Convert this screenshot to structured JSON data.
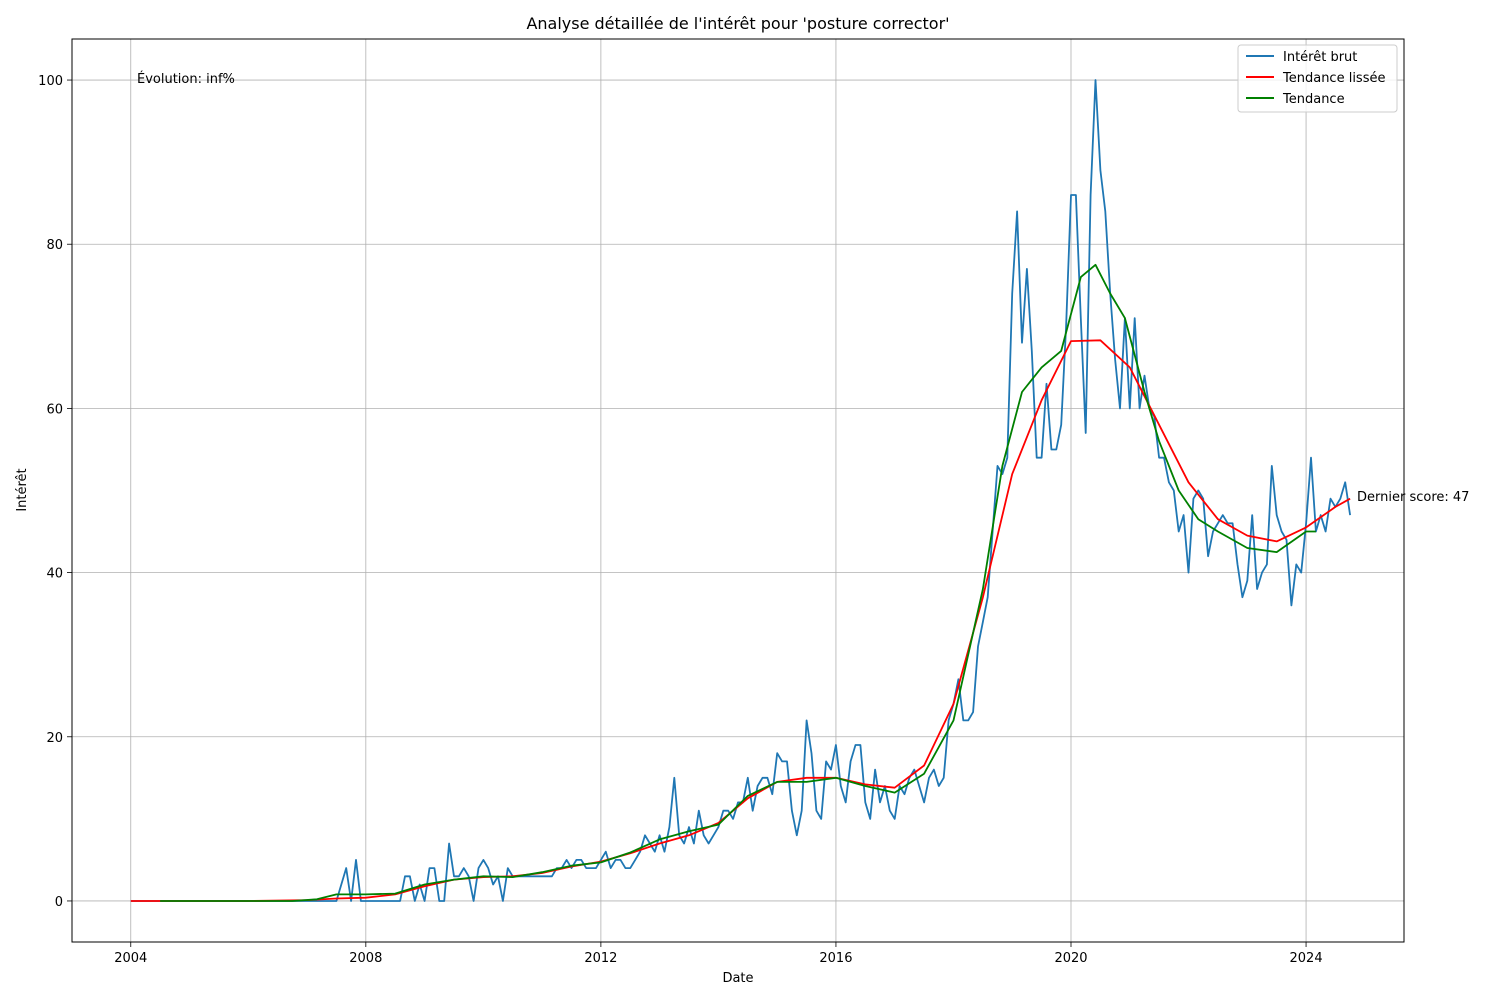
{
  "chart_data": {
    "type": "line",
    "title": "Analyse détaillée de l'intérêt pour 'posture corrector'",
    "xlabel": "Date",
    "ylabel": "Intérêt",
    "xlim": [
      "2003-01-01",
      "2025-09-01"
    ],
    "ylim": [
      -5,
      105
    ],
    "x_ticks": [
      "2004",
      "2008",
      "2012",
      "2016",
      "2020",
      "2024"
    ],
    "y_ticks": [
      0,
      20,
      40,
      60,
      80,
      100
    ],
    "grid": true,
    "legend_position": "top-right",
    "annotations": {
      "evolution": "Évolution: inf%",
      "last_score": "Dernier score: 47"
    },
    "series": [
      {
        "name": "Intérêt brut",
        "color": "#1f77b4",
        "points": [
          [
            "2004-01",
            0
          ],
          [
            "2007-07",
            0
          ],
          [
            "2007-09",
            4
          ],
          [
            "2007-10",
            0
          ],
          [
            "2007-11",
            5
          ],
          [
            "2007-12",
            0
          ],
          [
            "2008-08",
            0
          ],
          [
            "2008-09",
            3
          ],
          [
            "2008-10",
            3
          ],
          [
            "2008-11",
            0
          ],
          [
            "2008-12",
            2
          ],
          [
            "2009-01",
            0
          ],
          [
            "2009-02",
            4
          ],
          [
            "2009-03",
            4
          ],
          [
            "2009-04",
            0
          ],
          [
            "2009-05",
            0
          ],
          [
            "2009-06",
            7
          ],
          [
            "2009-07",
            3
          ],
          [
            "2009-08",
            3
          ],
          [
            "2009-09",
            4
          ],
          [
            "2009-10",
            3
          ],
          [
            "2009-11",
            0
          ],
          [
            "2009-12",
            4
          ],
          [
            "2010-01",
            5
          ],
          [
            "2010-02",
            4
          ],
          [
            "2010-03",
            2
          ],
          [
            "2010-04",
            3
          ],
          [
            "2010-05",
            0
          ],
          [
            "2010-06",
            4
          ],
          [
            "2010-07",
            3
          ],
          [
            "2010-08",
            3
          ],
          [
            "2010-09",
            3
          ],
          [
            "2010-10",
            3
          ],
          [
            "2010-11",
            3
          ],
          [
            "2010-12",
            3
          ],
          [
            "2011-01",
            3
          ],
          [
            "2011-02",
            3
          ],
          [
            "2011-03",
            3
          ],
          [
            "2011-04",
            4
          ],
          [
            "2011-05",
            4
          ],
          [
            "2011-06",
            5
          ],
          [
            "2011-07",
            4
          ],
          [
            "2011-08",
            5
          ],
          [
            "2011-09",
            5
          ],
          [
            "2011-10",
            4
          ],
          [
            "2011-11",
            4
          ],
          [
            "2011-12",
            4
          ],
          [
            "2012-01",
            5
          ],
          [
            "2012-02",
            6
          ],
          [
            "2012-03",
            4
          ],
          [
            "2012-04",
            5
          ],
          [
            "2012-05",
            5
          ],
          [
            "2012-06",
            4
          ],
          [
            "2012-07",
            4
          ],
          [
            "2012-08",
            5
          ],
          [
            "2012-09",
            6
          ],
          [
            "2012-10",
            8
          ],
          [
            "2012-11",
            7
          ],
          [
            "2012-12",
            6
          ],
          [
            "2013-01",
            8
          ],
          [
            "2013-02",
            6
          ],
          [
            "2013-03",
            9
          ],
          [
            "2013-04",
            15
          ],
          [
            "2013-05",
            8
          ],
          [
            "2013-06",
            7
          ],
          [
            "2013-07",
            9
          ],
          [
            "2013-08",
            7
          ],
          [
            "2013-09",
            11
          ],
          [
            "2013-10",
            8
          ],
          [
            "2013-11",
            7
          ],
          [
            "2013-12",
            8
          ],
          [
            "2014-01",
            9
          ],
          [
            "2014-02",
            11
          ],
          [
            "2014-03",
            11
          ],
          [
            "2014-04",
            10
          ],
          [
            "2014-05",
            12
          ],
          [
            "2014-06",
            12
          ],
          [
            "2014-07",
            15
          ],
          [
            "2014-08",
            11
          ],
          [
            "2014-09",
            14
          ],
          [
            "2014-10",
            15
          ],
          [
            "2014-11",
            15
          ],
          [
            "2014-12",
            13
          ],
          [
            "2015-01",
            18
          ],
          [
            "2015-02",
            17
          ],
          [
            "2015-03",
            17
          ],
          [
            "2015-04",
            11
          ],
          [
            "2015-05",
            8
          ],
          [
            "2015-06",
            11
          ],
          [
            "2015-07",
            22
          ],
          [
            "2015-08",
            18
          ],
          [
            "2015-09",
            11
          ],
          [
            "2015-10",
            10
          ],
          [
            "2015-11",
            17
          ],
          [
            "2015-12",
            16
          ],
          [
            "2016-01",
            19
          ],
          [
            "2016-02",
            14
          ],
          [
            "2016-03",
            12
          ],
          [
            "2016-04",
            17
          ],
          [
            "2016-05",
            19
          ],
          [
            "2016-06",
            19
          ],
          [
            "2016-07",
            12
          ],
          [
            "2016-08",
            10
          ],
          [
            "2016-09",
            16
          ],
          [
            "2016-10",
            12
          ],
          [
            "2016-11",
            14
          ],
          [
            "2016-12",
            11
          ],
          [
            "2017-01",
            10
          ],
          [
            "2017-02",
            14
          ],
          [
            "2017-03",
            13
          ],
          [
            "2017-04",
            15
          ],
          [
            "2017-05",
            16
          ],
          [
            "2017-06",
            14
          ],
          [
            "2017-07",
            12
          ],
          [
            "2017-08",
            15
          ],
          [
            "2017-09",
            16
          ],
          [
            "2017-10",
            14
          ],
          [
            "2017-11",
            15
          ],
          [
            "2017-12",
            22
          ],
          [
            "2018-01",
            24
          ],
          [
            "2018-02",
            27
          ],
          [
            "2018-03",
            22
          ],
          [
            "2018-04",
            22
          ],
          [
            "2018-05",
            23
          ],
          [
            "2018-06",
            31
          ],
          [
            "2018-07",
            34
          ],
          [
            "2018-08",
            37
          ],
          [
            "2018-09",
            45
          ],
          [
            "2018-10",
            53
          ],
          [
            "2018-11",
            52
          ],
          [
            "2018-12",
            54
          ],
          [
            "2019-01",
            74
          ],
          [
            "2019-02",
            84
          ],
          [
            "2019-03",
            68
          ],
          [
            "2019-04",
            77
          ],
          [
            "2019-05",
            67
          ],
          [
            "2019-06",
            54
          ],
          [
            "2019-07",
            54
          ],
          [
            "2019-08",
            63
          ],
          [
            "2019-09",
            55
          ],
          [
            "2019-10",
            55
          ],
          [
            "2019-11",
            58
          ],
          [
            "2019-12",
            70
          ],
          [
            "2020-01",
            86
          ],
          [
            "2020-02",
            86
          ],
          [
            "2020-03",
            71
          ],
          [
            "2020-04",
            57
          ],
          [
            "2020-05",
            86
          ],
          [
            "2020-06",
            100
          ],
          [
            "2020-07",
            89
          ],
          [
            "2020-08",
            84
          ],
          [
            "2020-09",
            74
          ],
          [
            "2020-10",
            66
          ],
          [
            "2020-11",
            60
          ],
          [
            "2020-12",
            71
          ],
          [
            "2021-01",
            60
          ],
          [
            "2021-02",
            71
          ],
          [
            "2021-03",
            60
          ],
          [
            "2021-04",
            64
          ],
          [
            "2021-05",
            60
          ],
          [
            "2021-06",
            59
          ],
          [
            "2021-07",
            54
          ],
          [
            "2021-08",
            54
          ],
          [
            "2021-09",
            51
          ],
          [
            "2021-10",
            50
          ],
          [
            "2021-11",
            45
          ],
          [
            "2021-12",
            47
          ],
          [
            "2022-01",
            40
          ],
          [
            "2022-02",
            49
          ],
          [
            "2022-03",
            50
          ],
          [
            "2022-04",
            49
          ],
          [
            "2022-05",
            42
          ],
          [
            "2022-06",
            45
          ],
          [
            "2022-07",
            46
          ],
          [
            "2022-08",
            47
          ],
          [
            "2022-09",
            46
          ],
          [
            "2022-10",
            46
          ],
          [
            "2022-11",
            41
          ],
          [
            "2022-12",
            37
          ],
          [
            "2023-01",
            39
          ],
          [
            "2023-02",
            47
          ],
          [
            "2023-03",
            38
          ],
          [
            "2023-04",
            40
          ],
          [
            "2023-05",
            41
          ],
          [
            "2023-06",
            53
          ],
          [
            "2023-07",
            47
          ],
          [
            "2023-08",
            45
          ],
          [
            "2023-09",
            44
          ],
          [
            "2023-10",
            36
          ],
          [
            "2023-11",
            41
          ],
          [
            "2023-12",
            40
          ],
          [
            "2024-01",
            46
          ],
          [
            "2024-02",
            54
          ],
          [
            "2024-03",
            45
          ],
          [
            "2024-04",
            47
          ],
          [
            "2024-05",
            45
          ],
          [
            "2024-06",
            49
          ],
          [
            "2024-07",
            48
          ],
          [
            "2024-08",
            49
          ],
          [
            "2024-09",
            51
          ],
          [
            "2024-10",
            47
          ]
        ]
      },
      {
        "name": "Tendance lissée",
        "color": "#ff0000",
        "points": [
          [
            "2004-01",
            0
          ],
          [
            "2006-01",
            0
          ],
          [
            "2007-01",
            0.1
          ],
          [
            "2007-07",
            0.3
          ],
          [
            "2008-01",
            0.4
          ],
          [
            "2008-07",
            0.8
          ],
          [
            "2009-01",
            1.8
          ],
          [
            "2009-07",
            2.6
          ],
          [
            "2010-01",
            2.9
          ],
          [
            "2010-07",
            3.0
          ],
          [
            "2011-01",
            3.4
          ],
          [
            "2011-07",
            4.2
          ],
          [
            "2012-01",
            4.8
          ],
          [
            "2012-07",
            5.8
          ],
          [
            "2013-01",
            7.0
          ],
          [
            "2013-07",
            8.0
          ],
          [
            "2014-01",
            9.5
          ],
          [
            "2014-07",
            12.5
          ],
          [
            "2015-01",
            14.5
          ],
          [
            "2015-07",
            15.0
          ],
          [
            "2016-01",
            15.0
          ],
          [
            "2016-07",
            14.2
          ],
          [
            "2017-01",
            13.8
          ],
          [
            "2017-07",
            16.5
          ],
          [
            "2018-01",
            24.0
          ],
          [
            "2018-07",
            37.0
          ],
          [
            "2019-01",
            52.0
          ],
          [
            "2019-07",
            61.0
          ],
          [
            "2020-01",
            68.2
          ],
          [
            "2020-07",
            68.3
          ],
          [
            "2021-01",
            65.0
          ],
          [
            "2021-07",
            58.0
          ],
          [
            "2022-01",
            51.0
          ],
          [
            "2022-07",
            46.5
          ],
          [
            "2023-01",
            44.5
          ],
          [
            "2023-07",
            43.8
          ],
          [
            "2024-01",
            45.5
          ],
          [
            "2024-07",
            48.0
          ],
          [
            "2024-10",
            49.0
          ]
        ]
      },
      {
        "name": "Tendance",
        "color": "#008000",
        "points": [
          [
            "2004-07",
            0
          ],
          [
            "2006-10",
            0
          ],
          [
            "2007-03",
            0.2
          ],
          [
            "2007-07",
            0.8
          ],
          [
            "2008-01",
            0.8
          ],
          [
            "2008-07",
            0.9
          ],
          [
            "2009-01",
            2.0
          ],
          [
            "2009-07",
            2.6
          ],
          [
            "2010-01",
            3.0
          ],
          [
            "2010-07",
            2.9
          ],
          [
            "2011-01",
            3.5
          ],
          [
            "2011-07",
            4.3
          ],
          [
            "2012-01",
            4.7
          ],
          [
            "2012-07",
            5.9
          ],
          [
            "2013-01",
            7.5
          ],
          [
            "2013-07",
            8.5
          ],
          [
            "2014-01",
            9.3
          ],
          [
            "2014-07",
            12.8
          ],
          [
            "2015-01",
            14.5
          ],
          [
            "2015-07",
            14.5
          ],
          [
            "2016-01",
            15.0
          ],
          [
            "2016-07",
            14.0
          ],
          [
            "2017-01",
            13.2
          ],
          [
            "2017-07",
            15.5
          ],
          [
            "2018-01",
            22.0
          ],
          [
            "2018-07",
            38.0
          ],
          [
            "2018-11",
            53.0
          ],
          [
            "2019-03",
            62.0
          ],
          [
            "2019-07",
            65.0
          ],
          [
            "2019-11",
            67.0
          ],
          [
            "2020-03",
            76.0
          ],
          [
            "2020-06",
            77.5
          ],
          [
            "2020-09",
            74.0
          ],
          [
            "2020-12",
            71.0
          ],
          [
            "2021-04",
            62.0
          ],
          [
            "2021-07",
            56.0
          ],
          [
            "2021-11",
            50.0
          ],
          [
            "2022-03",
            46.5
          ],
          [
            "2022-07",
            45.0
          ],
          [
            "2023-01",
            43.0
          ],
          [
            "2023-07",
            42.5
          ],
          [
            "2024-01",
            45.0
          ],
          [
            "2024-03",
            45.0
          ]
        ]
      }
    ]
  }
}
